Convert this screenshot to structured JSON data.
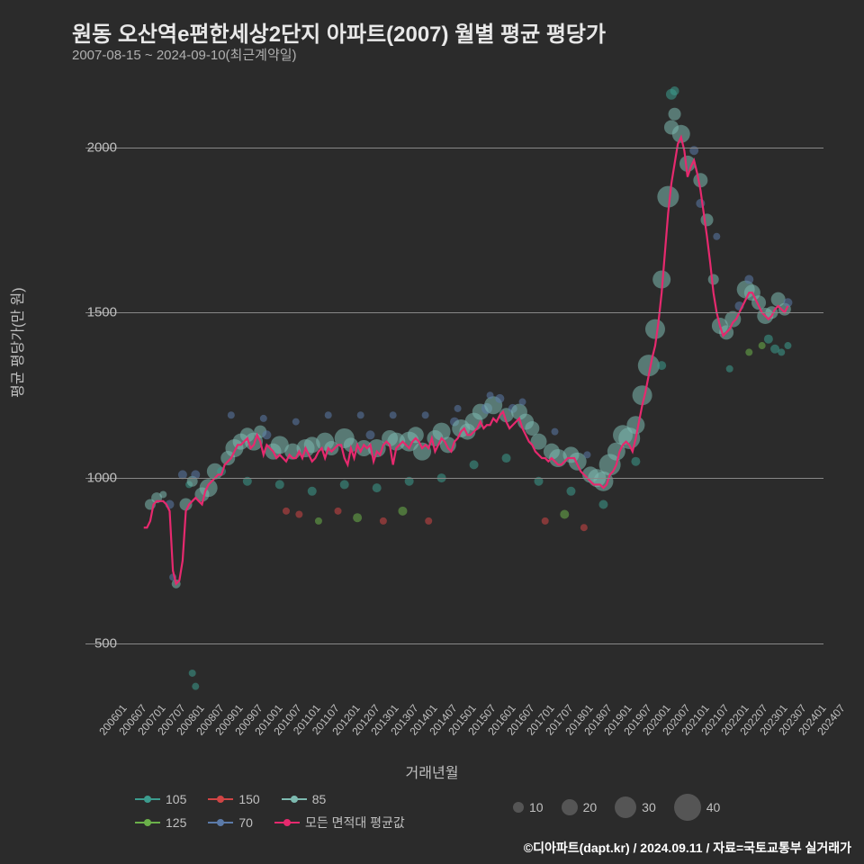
{
  "title": "원동 오산역e편한세상2단지 아파트(2007) 월별 평균 평당가",
  "subtitle": "2007-08-15 ~ 2024-09-10(최근계약일)",
  "ylabel": "평균 평당가(만 원)",
  "xlabel": "거래년월",
  "footer": "©디아파트(dapt.kr) / 2024.09.11 / 자료=국토교통부 실거래가",
  "background_color": "#2b2b2b",
  "grid_color": "#888888",
  "text_color": "#c0c0c0",
  "title_color": "#e8e8e8",
  "title_fontsize": 24,
  "subtitle_fontsize": 15,
  "axis_fontsize": 15,
  "label_fontsize": 16,
  "ylim": [
    350,
    2200
  ],
  "yticks": [
    500,
    1000,
    1500,
    2000
  ],
  "xticks": [
    "200601",
    "200607",
    "200701",
    "200707",
    "200801",
    "200807",
    "200901",
    "200907",
    "201001",
    "201007",
    "201101",
    "201107",
    "201201",
    "201207",
    "201301",
    "201307",
    "201401",
    "201407",
    "201501",
    "201507",
    "201601",
    "201607",
    "201701",
    "201707",
    "201801",
    "201807",
    "201901",
    "201907",
    "202001",
    "202007",
    "202101",
    "202107",
    "202201",
    "202207",
    "202301",
    "202307",
    "202401",
    "202407"
  ],
  "xrange_months": 228,
  "series_colors": {
    "105": "#3c9c8e",
    "125": "#6bb04a",
    "150": "#d04545",
    "70": "#5b7aa8",
    "85": "#7dbab0",
    "avg": "#e6296e"
  },
  "legend_series": [
    {
      "key": "105",
      "label": "105"
    },
    {
      "key": "150",
      "label": "150"
    },
    {
      "key": "85",
      "label": "85"
    },
    {
      "key": "125",
      "label": "125"
    },
    {
      "key": "70",
      "label": "70"
    },
    {
      "key": "avg",
      "label": "모든 면적대 평균값"
    }
  ],
  "size_legend": [
    {
      "label": "10",
      "d": 12
    },
    {
      "label": "20",
      "d": 18
    },
    {
      "label": "30",
      "d": 24
    },
    {
      "label": "40",
      "d": 30
    }
  ],
  "line_avg": [
    [
      18,
      850
    ],
    [
      19,
      850
    ],
    [
      20,
      870
    ],
    [
      21,
      920
    ],
    [
      22,
      930
    ],
    [
      23,
      930
    ],
    [
      24,
      930
    ],
    [
      25,
      920
    ],
    [
      26,
      900
    ],
    [
      27,
      720
    ],
    [
      28,
      680
    ],
    [
      29,
      690
    ],
    [
      30,
      750
    ],
    [
      31,
      900
    ],
    [
      32,
      920
    ],
    [
      33,
      930
    ],
    [
      34,
      940
    ],
    [
      35,
      930
    ],
    [
      36,
      920
    ],
    [
      37,
      960
    ],
    [
      38,
      980
    ],
    [
      39,
      990
    ],
    [
      40,
      1000
    ],
    [
      41,
      1010
    ],
    [
      42,
      1010
    ],
    [
      43,
      1040
    ],
    [
      44,
      1050
    ],
    [
      45,
      1060
    ],
    [
      46,
      1080
    ],
    [
      47,
      1100
    ],
    [
      48,
      1100
    ],
    [
      49,
      1110
    ],
    [
      50,
      1120
    ],
    [
      51,
      1090
    ],
    [
      52,
      1100
    ],
    [
      53,
      1130
    ],
    [
      54,
      1110
    ],
    [
      55,
      1070
    ],
    [
      56,
      1100
    ],
    [
      57,
      1090
    ],
    [
      58,
      1080
    ],
    [
      59,
      1060
    ],
    [
      60,
      1070
    ],
    [
      61,
      1060
    ],
    [
      62,
      1050
    ],
    [
      63,
      1070
    ],
    [
      64,
      1060
    ],
    [
      65,
      1060
    ],
    [
      66,
      1080
    ],
    [
      67,
      1060
    ],
    [
      68,
      1090
    ],
    [
      69,
      1070
    ],
    [
      70,
      1050
    ],
    [
      71,
      1060
    ],
    [
      72,
      1080
    ],
    [
      73,
      1090
    ],
    [
      74,
      1060
    ],
    [
      75,
      1090
    ],
    [
      76,
      1080
    ],
    [
      77,
      1090
    ],
    [
      78,
      1100
    ],
    [
      79,
      1100
    ],
    [
      80,
      1060
    ],
    [
      81,
      1040
    ],
    [
      82,
      1090
    ],
    [
      83,
      1060
    ],
    [
      84,
      1100
    ],
    [
      85,
      1080
    ],
    [
      86,
      1100
    ],
    [
      87,
      1090
    ],
    [
      88,
      1100
    ],
    [
      89,
      1050
    ],
    [
      90,
      1080
    ],
    [
      91,
      1070
    ],
    [
      92,
      1100
    ],
    [
      93,
      1110
    ],
    [
      94,
      1100
    ],
    [
      95,
      1040
    ],
    [
      96,
      1090
    ],
    [
      97,
      1100
    ],
    [
      98,
      1110
    ],
    [
      99,
      1100
    ],
    [
      100,
      1090
    ],
    [
      101,
      1110
    ],
    [
      102,
      1120
    ],
    [
      103,
      1110
    ],
    [
      104,
      1090
    ],
    [
      105,
      1100
    ],
    [
      106,
      1090
    ],
    [
      107,
      1120
    ],
    [
      108,
      1080
    ],
    [
      109,
      1100
    ],
    [
      110,
      1120
    ],
    [
      111,
      1110
    ],
    [
      112,
      1090
    ],
    [
      113,
      1080
    ],
    [
      114,
      1110
    ],
    [
      115,
      1120
    ],
    [
      116,
      1140
    ],
    [
      117,
      1150
    ],
    [
      118,
      1130
    ],
    [
      119,
      1130
    ],
    [
      120,
      1140
    ],
    [
      121,
      1150
    ],
    [
      122,
      1170
    ],
    [
      123,
      1150
    ],
    [
      124,
      1160
    ],
    [
      125,
      1160
    ],
    [
      126,
      1180
    ],
    [
      127,
      1170
    ],
    [
      128,
      1190
    ],
    [
      129,
      1200
    ],
    [
      130,
      1170
    ],
    [
      131,
      1150
    ],
    [
      132,
      1160
    ],
    [
      133,
      1170
    ],
    [
      134,
      1180
    ],
    [
      135,
      1150
    ],
    [
      136,
      1130
    ],
    [
      137,
      1110
    ],
    [
      138,
      1100
    ],
    [
      139,
      1080
    ],
    [
      140,
      1070
    ],
    [
      141,
      1060
    ],
    [
      142,
      1060
    ],
    [
      143,
      1050
    ],
    [
      144,
      1060
    ],
    [
      145,
      1050
    ],
    [
      146,
      1040
    ],
    [
      147,
      1040
    ],
    [
      148,
      1050
    ],
    [
      149,
      1060
    ],
    [
      150,
      1060
    ],
    [
      151,
      1060
    ],
    [
      152,
      1040
    ],
    [
      153,
      1020
    ],
    [
      154,
      1010
    ],
    [
      155,
      1000
    ],
    [
      156,
      990
    ],
    [
      157,
      980
    ],
    [
      158,
      980
    ],
    [
      159,
      980
    ],
    [
      160,
      970
    ],
    [
      161,
      980
    ],
    [
      162,
      1010
    ],
    [
      163,
      1020
    ],
    [
      164,
      1040
    ],
    [
      165,
      1080
    ],
    [
      166,
      1100
    ],
    [
      167,
      1110
    ],
    [
      168,
      1100
    ],
    [
      169,
      1080
    ],
    [
      170,
      1120
    ],
    [
      171,
      1170
    ],
    [
      172,
      1220
    ],
    [
      173,
      1260
    ],
    [
      174,
      1310
    ],
    [
      175,
      1360
    ],
    [
      176,
      1400
    ],
    [
      177,
      1470
    ],
    [
      178,
      1560
    ],
    [
      179,
      1680
    ],
    [
      180,
      1800
    ],
    [
      181,
      1890
    ],
    [
      182,
      1950
    ],
    [
      183,
      2010
    ],
    [
      184,
      2030
    ],
    [
      185,
      1990
    ],
    [
      186,
      1910
    ],
    [
      187,
      1940
    ],
    [
      188,
      1960
    ],
    [
      189,
      1920
    ],
    [
      190,
      1870
    ],
    [
      191,
      1800
    ],
    [
      192,
      1730
    ],
    [
      193,
      1650
    ],
    [
      194,
      1560
    ],
    [
      195,
      1500
    ],
    [
      196,
      1460
    ],
    [
      197,
      1430
    ],
    [
      198,
      1440
    ],
    [
      199,
      1450
    ],
    [
      200,
      1470
    ],
    [
      201,
      1480
    ],
    [
      202,
      1500
    ],
    [
      203,
      1520
    ],
    [
      204,
      1540
    ],
    [
      205,
      1560
    ],
    [
      206,
      1560
    ],
    [
      207,
      1540
    ],
    [
      208,
      1520
    ],
    [
      209,
      1500
    ],
    [
      210,
      1490
    ],
    [
      211,
      1480
    ],
    [
      212,
      1490
    ],
    [
      213,
      1510
    ],
    [
      214,
      1520
    ],
    [
      215,
      1510
    ],
    [
      216,
      1500
    ],
    [
      217,
      1520
    ]
  ],
  "scatter": [
    {
      "x": 20,
      "y": 920,
      "s": 85,
      "r": 6
    },
    {
      "x": 22,
      "y": 940,
      "s": 85,
      "r": 6
    },
    {
      "x": 24,
      "y": 950,
      "s": 85,
      "r": 4
    },
    {
      "x": 26,
      "y": 920,
      "s": 70,
      "r": 5
    },
    {
      "x": 27,
      "y": 700,
      "s": 70,
      "r": 4
    },
    {
      "x": 28,
      "y": 680,
      "s": 85,
      "r": 5
    },
    {
      "x": 30,
      "y": 1010,
      "s": 70,
      "r": 5
    },
    {
      "x": 31,
      "y": 920,
      "s": 85,
      "r": 7
    },
    {
      "x": 32,
      "y": 980,
      "s": 105,
      "r": 4
    },
    {
      "x": 33,
      "y": 990,
      "s": 85,
      "r": 6
    },
    {
      "x": 34,
      "y": 1010,
      "s": 70,
      "r": 5
    },
    {
      "x": 33,
      "y": 410,
      "s": 105,
      "r": 4
    },
    {
      "x": 34,
      "y": 370,
      "s": 105,
      "r": 4
    },
    {
      "x": 36,
      "y": 950,
      "s": 85,
      "r": 8
    },
    {
      "x": 38,
      "y": 970,
      "s": 85,
      "r": 10
    },
    {
      "x": 40,
      "y": 1020,
      "s": 85,
      "r": 9
    },
    {
      "x": 42,
      "y": 1020,
      "s": 105,
      "r": 5
    },
    {
      "x": 44,
      "y": 1060,
      "s": 85,
      "r": 8
    },
    {
      "x": 46,
      "y": 1090,
      "s": 85,
      "r": 10
    },
    {
      "x": 48,
      "y": 1110,
      "s": 85,
      "r": 9
    },
    {
      "x": 50,
      "y": 1130,
      "s": 85,
      "r": 8
    },
    {
      "x": 52,
      "y": 1110,
      "s": 85,
      "r": 10
    },
    {
      "x": 54,
      "y": 1140,
      "s": 85,
      "r": 7
    },
    {
      "x": 56,
      "y": 1130,
      "s": 70,
      "r": 5
    },
    {
      "x": 58,
      "y": 1080,
      "s": 85,
      "r": 9
    },
    {
      "x": 60,
      "y": 1100,
      "s": 85,
      "r": 10
    },
    {
      "x": 62,
      "y": 900,
      "s": 150,
      "r": 4
    },
    {
      "x": 64,
      "y": 1080,
      "s": 85,
      "r": 9
    },
    {
      "x": 66,
      "y": 890,
      "s": 150,
      "r": 4
    },
    {
      "x": 68,
      "y": 1090,
      "s": 85,
      "r": 10
    },
    {
      "x": 70,
      "y": 1100,
      "s": 85,
      "r": 9
    },
    {
      "x": 72,
      "y": 870,
      "s": 125,
      "r": 4
    },
    {
      "x": 74,
      "y": 1110,
      "s": 85,
      "r": 10
    },
    {
      "x": 76,
      "y": 1090,
      "s": 85,
      "r": 8
    },
    {
      "x": 78,
      "y": 900,
      "s": 150,
      "r": 4
    },
    {
      "x": 80,
      "y": 1120,
      "s": 85,
      "r": 11
    },
    {
      "x": 82,
      "y": 1100,
      "s": 85,
      "r": 8
    },
    {
      "x": 84,
      "y": 880,
      "s": 125,
      "r": 5
    },
    {
      "x": 86,
      "y": 1090,
      "s": 85,
      "r": 9
    },
    {
      "x": 88,
      "y": 1130,
      "s": 70,
      "r": 5
    },
    {
      "x": 90,
      "y": 1090,
      "s": 85,
      "r": 10
    },
    {
      "x": 92,
      "y": 870,
      "s": 150,
      "r": 4
    },
    {
      "x": 94,
      "y": 1120,
      "s": 85,
      "r": 9
    },
    {
      "x": 96,
      "y": 1110,
      "s": 85,
      "r": 10
    },
    {
      "x": 98,
      "y": 900,
      "s": 125,
      "r": 5
    },
    {
      "x": 100,
      "y": 1110,
      "s": 85,
      "r": 11
    },
    {
      "x": 102,
      "y": 1130,
      "s": 85,
      "r": 9
    },
    {
      "x": 104,
      "y": 1080,
      "s": 85,
      "r": 10
    },
    {
      "x": 106,
      "y": 870,
      "s": 150,
      "r": 4
    },
    {
      "x": 108,
      "y": 1120,
      "s": 85,
      "r": 9
    },
    {
      "x": 110,
      "y": 1140,
      "s": 85,
      "r": 10
    },
    {
      "x": 112,
      "y": 1100,
      "s": 85,
      "r": 9
    },
    {
      "x": 114,
      "y": 1170,
      "s": 70,
      "r": 5
    },
    {
      "x": 116,
      "y": 1150,
      "s": 85,
      "r": 10
    },
    {
      "x": 118,
      "y": 1140,
      "s": 85,
      "r": 9
    },
    {
      "x": 120,
      "y": 1170,
      "s": 85,
      "r": 10
    },
    {
      "x": 122,
      "y": 1200,
      "s": 85,
      "r": 9
    },
    {
      "x": 124,
      "y": 1210,
      "s": 70,
      "r": 6
    },
    {
      "x": 126,
      "y": 1220,
      "s": 85,
      "r": 10
    },
    {
      "x": 128,
      "y": 1240,
      "s": 70,
      "r": 5
    },
    {
      "x": 130,
      "y": 1190,
      "s": 85,
      "r": 8
    },
    {
      "x": 132,
      "y": 1210,
      "s": 70,
      "r": 5
    },
    {
      "x": 134,
      "y": 1200,
      "s": 85,
      "r": 9
    },
    {
      "x": 136,
      "y": 1170,
      "s": 85,
      "r": 9
    },
    {
      "x": 138,
      "y": 1150,
      "s": 85,
      "r": 8
    },
    {
      "x": 140,
      "y": 1110,
      "s": 85,
      "r": 9
    },
    {
      "x": 142,
      "y": 870,
      "s": 150,
      "r": 4
    },
    {
      "x": 144,
      "y": 1080,
      "s": 85,
      "r": 9
    },
    {
      "x": 146,
      "y": 1060,
      "s": 85,
      "r": 10
    },
    {
      "x": 148,
      "y": 890,
      "s": 125,
      "r": 5
    },
    {
      "x": 150,
      "y": 1070,
      "s": 85,
      "r": 9
    },
    {
      "x": 152,
      "y": 1050,
      "s": 85,
      "r": 10
    },
    {
      "x": 154,
      "y": 850,
      "s": 150,
      "r": 4
    },
    {
      "x": 156,
      "y": 1010,
      "s": 85,
      "r": 9
    },
    {
      "x": 158,
      "y": 1000,
      "s": 85,
      "r": 10
    },
    {
      "x": 160,
      "y": 990,
      "s": 85,
      "r": 11
    },
    {
      "x": 162,
      "y": 1040,
      "s": 85,
      "r": 12
    },
    {
      "x": 164,
      "y": 1080,
      "s": 85,
      "r": 10
    },
    {
      "x": 166,
      "y": 1130,
      "s": 85,
      "r": 11
    },
    {
      "x": 168,
      "y": 1120,
      "s": 85,
      "r": 12
    },
    {
      "x": 170,
      "y": 1160,
      "s": 85,
      "r": 10
    },
    {
      "x": 172,
      "y": 1250,
      "s": 85,
      "r": 11
    },
    {
      "x": 174,
      "y": 1340,
      "s": 85,
      "r": 12
    },
    {
      "x": 176,
      "y": 1450,
      "s": 85,
      "r": 11
    },
    {
      "x": 178,
      "y": 1600,
      "s": 85,
      "r": 10
    },
    {
      "x": 180,
      "y": 1850,
      "s": 85,
      "r": 12
    },
    {
      "x": 181,
      "y": 2060,
      "s": 85,
      "r": 8
    },
    {
      "x": 181,
      "y": 2160,
      "s": 105,
      "r": 6
    },
    {
      "x": 182,
      "y": 2100,
      "s": 85,
      "r": 7
    },
    {
      "x": 182,
      "y": 2170,
      "s": 105,
      "r": 5
    },
    {
      "x": 184,
      "y": 2040,
      "s": 85,
      "r": 10
    },
    {
      "x": 186,
      "y": 1950,
      "s": 85,
      "r": 9
    },
    {
      "x": 188,
      "y": 1990,
      "s": 70,
      "r": 5
    },
    {
      "x": 190,
      "y": 1900,
      "s": 85,
      "r": 8
    },
    {
      "x": 190,
      "y": 1830,
      "s": 70,
      "r": 5
    },
    {
      "x": 192,
      "y": 1780,
      "s": 85,
      "r": 7
    },
    {
      "x": 194,
      "y": 1600,
      "s": 85,
      "r": 6
    },
    {
      "x": 196,
      "y": 1460,
      "s": 85,
      "r": 9
    },
    {
      "x": 198,
      "y": 1440,
      "s": 85,
      "r": 8
    },
    {
      "x": 200,
      "y": 1480,
      "s": 85,
      "r": 9
    },
    {
      "x": 202,
      "y": 1520,
      "s": 70,
      "r": 5
    },
    {
      "x": 204,
      "y": 1570,
      "s": 85,
      "r": 10
    },
    {
      "x": 205,
      "y": 1600,
      "s": 70,
      "r": 5
    },
    {
      "x": 206,
      "y": 1560,
      "s": 85,
      "r": 9
    },
    {
      "x": 208,
      "y": 1530,
      "s": 85,
      "r": 8
    },
    {
      "x": 210,
      "y": 1490,
      "s": 85,
      "r": 9
    },
    {
      "x": 211,
      "y": 1420,
      "s": 105,
      "r": 5
    },
    {
      "x": 212,
      "y": 1500,
      "s": 85,
      "r": 7
    },
    {
      "x": 213,
      "y": 1390,
      "s": 105,
      "r": 5
    },
    {
      "x": 214,
      "y": 1540,
      "s": 85,
      "r": 8
    },
    {
      "x": 215,
      "y": 1380,
      "s": 105,
      "r": 4
    },
    {
      "x": 216,
      "y": 1510,
      "s": 85,
      "r": 7
    },
    {
      "x": 217,
      "y": 1530,
      "s": 70,
      "r": 5
    },
    {
      "x": 217,
      "y": 1400,
      "s": 105,
      "r": 4
    },
    {
      "x": 45,
      "y": 1190,
      "s": 70,
      "r": 4
    },
    {
      "x": 55,
      "y": 1180,
      "s": 70,
      "r": 4
    },
    {
      "x": 65,
      "y": 1170,
      "s": 70,
      "r": 4
    },
    {
      "x": 75,
      "y": 1190,
      "s": 70,
      "r": 4
    },
    {
      "x": 85,
      "y": 1190,
      "s": 70,
      "r": 4
    },
    {
      "x": 95,
      "y": 1190,
      "s": 70,
      "r": 4
    },
    {
      "x": 105,
      "y": 1190,
      "s": 70,
      "r": 4
    },
    {
      "x": 115,
      "y": 1210,
      "s": 70,
      "r": 4
    },
    {
      "x": 125,
      "y": 1250,
      "s": 70,
      "r": 4
    },
    {
      "x": 135,
      "y": 1230,
      "s": 70,
      "r": 4
    },
    {
      "x": 145,
      "y": 1140,
      "s": 70,
      "r": 4
    },
    {
      "x": 155,
      "y": 1070,
      "s": 70,
      "r": 4
    },
    {
      "x": 50,
      "y": 990,
      "s": 105,
      "r": 5
    },
    {
      "x": 60,
      "y": 980,
      "s": 105,
      "r": 5
    },
    {
      "x": 70,
      "y": 960,
      "s": 105,
      "r": 5
    },
    {
      "x": 80,
      "y": 980,
      "s": 105,
      "r": 5
    },
    {
      "x": 90,
      "y": 970,
      "s": 105,
      "r": 5
    },
    {
      "x": 100,
      "y": 990,
      "s": 105,
      "r": 5
    },
    {
      "x": 110,
      "y": 1000,
      "s": 105,
      "r": 5
    },
    {
      "x": 120,
      "y": 1040,
      "s": 105,
      "r": 5
    },
    {
      "x": 130,
      "y": 1060,
      "s": 105,
      "r": 5
    },
    {
      "x": 140,
      "y": 990,
      "s": 105,
      "r": 5
    },
    {
      "x": 150,
      "y": 960,
      "s": 105,
      "r": 5
    },
    {
      "x": 160,
      "y": 920,
      "s": 105,
      "r": 5
    },
    {
      "x": 170,
      "y": 1050,
      "s": 105,
      "r": 5
    },
    {
      "x": 178,
      "y": 1340,
      "s": 105,
      "r": 5
    },
    {
      "x": 195,
      "y": 1730,
      "s": 70,
      "r": 4
    },
    {
      "x": 199,
      "y": 1330,
      "s": 105,
      "r": 4
    },
    {
      "x": 205,
      "y": 1380,
      "s": 125,
      "r": 4
    },
    {
      "x": 209,
      "y": 1400,
      "s": 125,
      "r": 4
    }
  ]
}
